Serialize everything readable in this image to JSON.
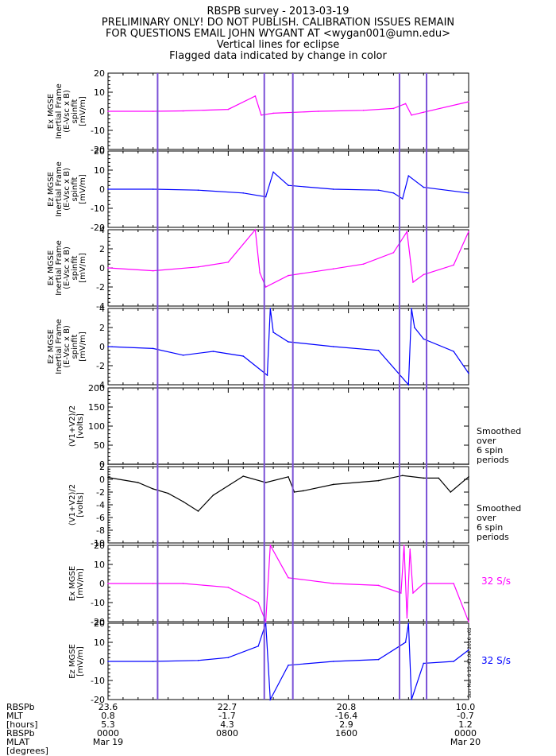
{
  "header": {
    "line1": "RBSPB survey - 2013-03-19",
    "line2": "PRELIMINARY ONLY! DO NOT PUBLISH. CALIBRATION ISSUES REMAIN",
    "line3": "FOR QUESTIONS EMAIL JOHN WYGANT AT <wygan001@umn.edu>",
    "line4": "Vertical lines for eclipse",
    "line5": "Flagged data indicated by change in color"
  },
  "colors": {
    "magenta": "#ff00ff",
    "blue": "#0000ff",
    "black": "#000000",
    "eclipse": "#7b52d6"
  },
  "eclipse_lines_hours": [
    3.3,
    10.4,
    12.3,
    19.4,
    21.2
  ],
  "chart_data": [
    {
      "type": "line",
      "panel": 1,
      "ylabel_lines": [
        "Ex MGSE",
        "Inertial Frame",
        "(E-Vsc x B)",
        "spinfit",
        "[mV/m]"
      ],
      "ylim": [
        -20,
        20
      ],
      "yticks": [
        "20",
        "10",
        "0",
        "-10",
        "-20"
      ],
      "color": "magenta",
      "x": [
        0,
        3,
        5,
        8,
        9.8,
        10.2,
        11,
        14,
        17,
        19,
        19.8,
        20.2,
        21,
        24
      ],
      "y": [
        0,
        0,
        0.2,
        1,
        8,
        -2,
        -1,
        0,
        0.5,
        1.5,
        4,
        -2,
        -0.5,
        5
      ]
    },
    {
      "type": "line",
      "panel": 2,
      "ylabel_lines": [
        "Ez MGSE",
        "Inertial Frame",
        "(E-Vsc x B)",
        "spinfit",
        "[mV/m]"
      ],
      "ylim": [
        -20,
        20
      ],
      "yticks": [
        "20",
        "10",
        "0",
        "-10",
        "-20"
      ],
      "color": "blue",
      "x": [
        0,
        3,
        6,
        9,
        10.5,
        11,
        12,
        15,
        18,
        19,
        19.6,
        20,
        21,
        24
      ],
      "y": [
        0,
        0,
        -0.5,
        -2,
        -4,
        9,
        2,
        0,
        -0.5,
        -2,
        -5,
        7,
        1,
        -2
      ]
    },
    {
      "type": "line",
      "panel": 3,
      "ylabel_lines": [
        "Ex MGSE",
        "Inertial Frame",
        "(E-Vsc x B)",
        "spinfit",
        "[mV/m]"
      ],
      "ylim": [
        -4,
        4
      ],
      "yticks": [
        "4",
        "2",
        "0",
        "-2",
        "-4"
      ],
      "color": "magenta",
      "x": [
        0,
        3,
        6,
        8,
        9.8,
        10.1,
        10.5,
        12,
        15,
        17,
        19,
        19.9,
        20.3,
        21,
        23,
        24
      ],
      "y": [
        0,
        -0.3,
        0.1,
        0.6,
        4,
        -0.5,
        -2,
        -0.8,
        -0.1,
        0.4,
        1.6,
        3.8,
        -1.5,
        -0.7,
        0.3,
        3.8
      ]
    },
    {
      "type": "line",
      "panel": 4,
      "ylabel_lines": [
        "Ez MGSE",
        "Inertial Frame",
        "(E-Vsc x B)",
        "spinfit",
        "[mV/m]"
      ],
      "ylim": [
        -4,
        4
      ],
      "yticks": [
        "4",
        "2",
        "0",
        "-2",
        "-4"
      ],
      "color": "blue",
      "x": [
        0,
        3,
        5,
        7,
        9,
        10.6,
        10.8,
        11,
        12,
        15,
        18,
        20,
        20.2,
        20.4,
        21,
        23,
        24
      ],
      "y": [
        0,
        -0.2,
        -0.9,
        -0.5,
        -1,
        -3,
        4,
        1.5,
        0.5,
        0,
        -0.4,
        -4,
        4,
        2,
        0.8,
        -0.5,
        -2.8
      ]
    },
    {
      "type": "line",
      "panel": 5,
      "ylabel_lines": [
        "(V1+V2)/2",
        "[volts]"
      ],
      "ylim": [
        0,
        200
      ],
      "yticks": [
        "200",
        "150",
        "100",
        "50",
        "0"
      ],
      "color": "black",
      "x": [
        0,
        3,
        6,
        9,
        12,
        15,
        18,
        21,
        24
      ],
      "y": [
        0,
        0,
        -2,
        -1,
        0,
        0,
        0,
        0,
        0
      ]
    },
    {
      "type": "line",
      "panel": 6,
      "ylabel_lines": [
        "(V1+V2)/2",
        "[volts]"
      ],
      "ylim": [
        -10,
        2
      ],
      "yticks": [
        "2",
        "0",
        "-2",
        "-4",
        "-6",
        "-8",
        "-10"
      ],
      "color": "black",
      "x": [
        0,
        2,
        3,
        4,
        5,
        6,
        7,
        9,
        10.5,
        12,
        12.4,
        13,
        15,
        18,
        19.6,
        21,
        22,
        22.8,
        24
      ],
      "y": [
        0.3,
        -0.5,
        -1.5,
        -2.2,
        -3.5,
        -5,
        -2.5,
        0.5,
        -0.5,
        0.4,
        -2,
        -1.8,
        -0.8,
        -0.2,
        0.6,
        0.2,
        0.2,
        -2,
        0.4
      ]
    },
    {
      "type": "line",
      "panel": 7,
      "ylabel_lines": [
        "Ex MGSE",
        "[mV/m]"
      ],
      "ylim": [
        -20,
        20
      ],
      "yticks": [
        "20",
        "10",
        "0",
        "-10",
        "-20"
      ],
      "color": "magenta",
      "x": [
        0,
        3,
        5,
        8,
        10,
        10.5,
        10.8,
        12,
        15,
        18,
        19.5,
        19.7,
        19.9,
        20.1,
        20.3,
        21,
        23,
        24
      ],
      "y": [
        0,
        0,
        0,
        -2,
        -10,
        -20,
        20,
        3,
        0,
        -1,
        -5,
        20,
        -18,
        18,
        -5,
        0,
        0,
        -20
      ]
    },
    {
      "type": "line",
      "panel": 8,
      "ylabel_lines": [
        "Ez MGSE",
        "[mV/m]"
      ],
      "ylim": [
        -20,
        20
      ],
      "yticks": [
        "20",
        "10",
        "0",
        "-10",
        "-20"
      ],
      "color": "blue",
      "x": [
        0,
        3,
        6,
        8,
        10,
        10.5,
        10.8,
        12,
        15,
        18,
        19.8,
        20,
        20.2,
        21,
        23,
        24
      ],
      "y": [
        0,
        0,
        0.5,
        2,
        8,
        20,
        -20,
        -2,
        0,
        1,
        10,
        20,
        -20,
        -1,
        0,
        6
      ]
    }
  ],
  "side_notes": {
    "panel5": [
      "Smoothed",
      "over",
      "6 spin",
      "periods"
    ],
    "panel6": [
      "Smoothed",
      "over",
      "6 spin",
      "periods"
    ],
    "panel7_rate": "32 S/s",
    "panel8_rate": "32 S/s"
  },
  "stamp": "Sun Mar  6 15:43:04 2016 v02",
  "bottom_labels": {
    "rows": [
      "RBSPb",
      "MLT",
      "[hours]",
      "RBSPb",
      "MLAT",
      "[degrees]"
    ],
    "columns": [
      {
        "lines": [
          "23.6",
          "0.8",
          "5.3",
          "0000",
          "Mar 19"
        ]
      },
      {
        "lines": [
          "22.7",
          "-1.7",
          "4.3",
          "0800",
          ""
        ]
      },
      {
        "lines": [
          "20.8",
          "-16.4",
          "2.9",
          "1600",
          ""
        ]
      },
      {
        "lines": [
          "10.0",
          "-0.7",
          "1.2",
          "0000",
          "Mar 20"
        ]
      }
    ]
  }
}
